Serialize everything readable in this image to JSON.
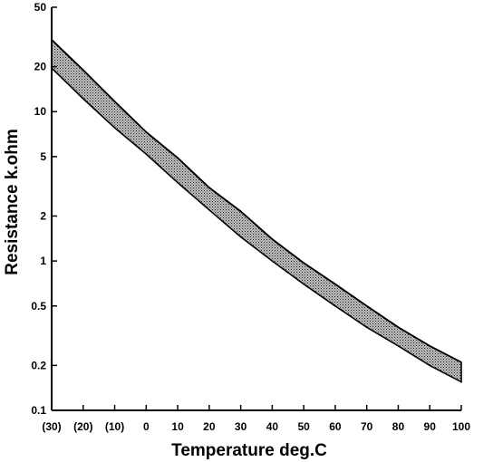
{
  "chart_data": {
    "type": "area",
    "title": "",
    "xlabel": "Temperature deg.C",
    "ylabel": "Resistance k.ohm",
    "yscale": "log",
    "xlim": [
      -30,
      100
    ],
    "ylim": [
      0.1,
      50
    ],
    "grid": false,
    "legend": "none",
    "x_ticks": [
      -30,
      -20,
      -10,
      0,
      10,
      20,
      30,
      40,
      50,
      60,
      70,
      80,
      90,
      100
    ],
    "x_tick_labels": [
      "(30)",
      "(20)",
      "(10)",
      "0",
      "10",
      "20",
      "30",
      "40",
      "50",
      "60",
      "70",
      "80",
      "90",
      "100"
    ],
    "y_ticks": [
      0.1,
      0.2,
      0.5,
      1,
      2,
      5,
      10,
      20,
      50
    ],
    "y_tick_labels": [
      "0.1",
      "0.2",
      "0.5",
      "1",
      "2",
      "5",
      "10",
      "20",
      "50"
    ],
    "band_color": "#9a9a9a",
    "series": [
      {
        "x": [
          -30,
          -20,
          -10,
          0,
          10,
          20,
          30,
          40,
          50,
          60,
          70,
          80,
          90,
          100
        ],
        "upper": [
          30.3,
          19,
          11.7,
          7.3,
          4.9,
          3.1,
          2.15,
          1.4,
          0.97,
          0.7,
          0.5,
          0.36,
          0.27,
          0.21
        ],
        "lower": [
          19.6,
          12.2,
          7.8,
          5.2,
          3.35,
          2.2,
          1.45,
          1.0,
          0.7,
          0.5,
          0.36,
          0.27,
          0.2,
          0.155
        ]
      }
    ]
  }
}
